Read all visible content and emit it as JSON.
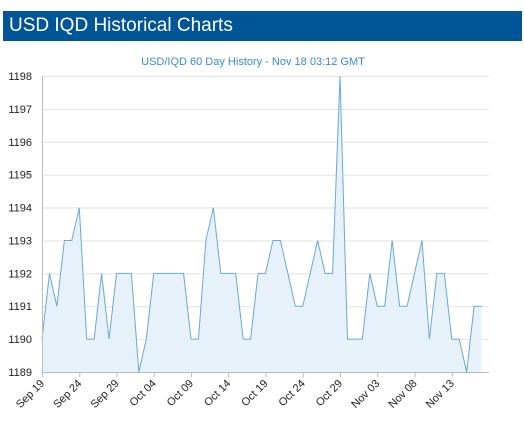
{
  "header": {
    "title": "USD IQD Historical Charts"
  },
  "colors": {
    "header_bg": "#005596",
    "line": "#6aa9d4",
    "area": "#e6f1fa",
    "grid": "#e2e2e2",
    "title": "#3c8bc9"
  },
  "chart_data": {
    "type": "area",
    "title": "USD/IQD 60 Day History - Nov 18 03:12 GMT",
    "xlabel": "",
    "ylabel": "",
    "ylim": [
      1189,
      1198
    ],
    "yticks": [
      1189,
      1190,
      1191,
      1192,
      1193,
      1194,
      1195,
      1196,
      1197,
      1198
    ],
    "grid": true,
    "x_tick_labels": [
      "Sep 19",
      "Sep 24",
      "Sep 29",
      "Oct 04",
      "Oct 09",
      "Oct 14",
      "Oct 19",
      "Oct 24",
      "Oct 29",
      "Nov 03",
      "Nov 08",
      "Nov 13"
    ],
    "x_tick_day_index": [
      0,
      5,
      10,
      15,
      20,
      25,
      30,
      35,
      40,
      45,
      50,
      55
    ],
    "x_range_days": [
      0,
      60
    ],
    "series": [
      {
        "values": [
          1190,
          1192,
          1191,
          1193,
          1193,
          1194,
          1190,
          1190,
          1192,
          1190,
          1192,
          1192,
          1192,
          1189,
          1190,
          1192,
          1192,
          1192,
          1192,
          1192,
          1190,
          1190,
          1193,
          1194,
          1192,
          1192,
          1192,
          1190,
          1190,
          1192,
          1192,
          1193,
          1193,
          1192,
          1191,
          1191,
          1192,
          1193,
          1192,
          1192,
          1198,
          1190,
          1190,
          1190,
          1192,
          1191,
          1191,
          1193,
          1191,
          1191,
          1192,
          1193,
          1190,
          1192,
          1192,
          1190,
          1190,
          1189,
          1191,
          1191
        ]
      }
    ]
  }
}
